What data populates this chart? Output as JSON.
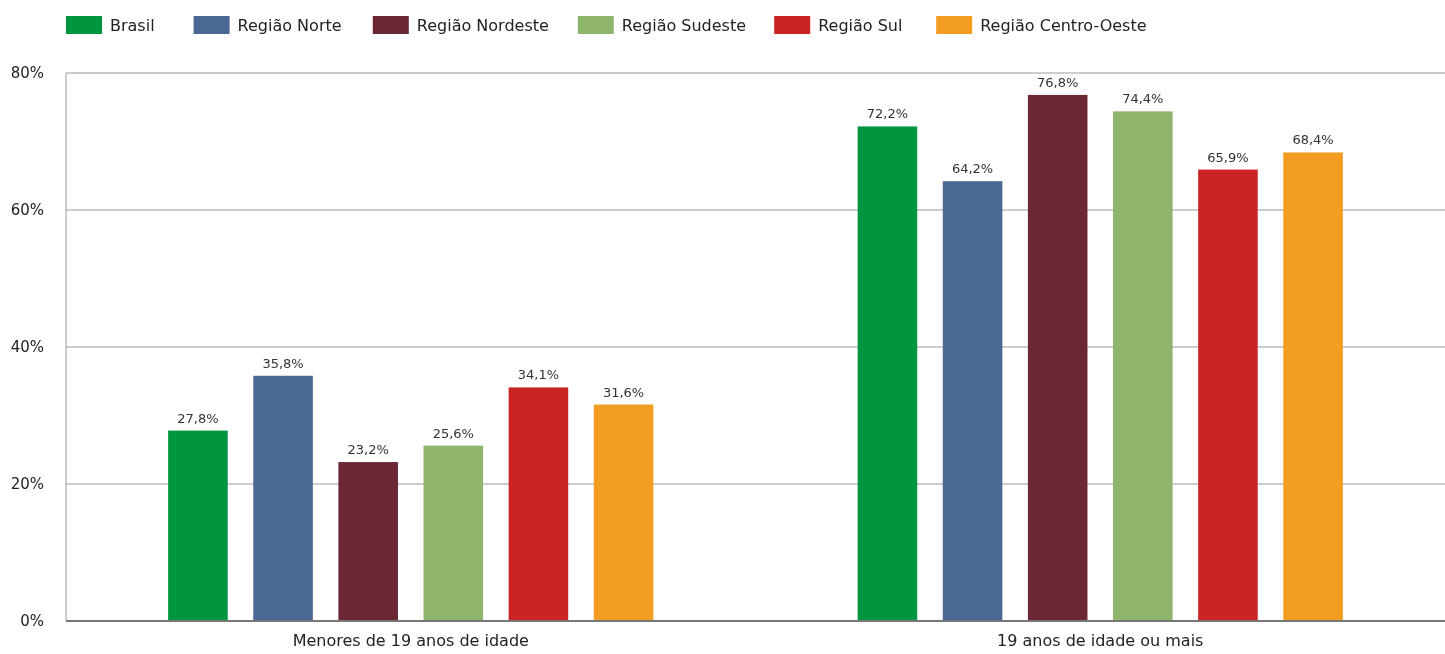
{
  "chart_data": {
    "type": "bar",
    "categories": [
      "Menores de 19 anos de idade",
      "19 anos de idade ou mais"
    ],
    "series": [
      {
        "name": "Brasil",
        "color": "#009640",
        "values": [
          27.8,
          72.2
        ],
        "value_labels": [
          "27,8%",
          "72,2%"
        ]
      },
      {
        "name": "Região Norte",
        "color": "#4a6893",
        "values": [
          35.8,
          64.2
        ],
        "value_labels": [
          "35,8%",
          "64,2%"
        ]
      },
      {
        "name": "Região Nordeste",
        "color": "#6b2734",
        "values": [
          23.2,
          76.8
        ],
        "value_labels": [
          "23,2%",
          "76,8%"
        ]
      },
      {
        "name": "Região Sudeste",
        "color": "#8db56b",
        "values": [
          25.6,
          74.4
        ],
        "value_labels": [
          "25,6%",
          "74,4%"
        ]
      },
      {
        "name": "Região Sul",
        "color": "#cc2424",
        "values": [
          34.1,
          65.9
        ],
        "value_labels": [
          "34,1%",
          "65,9%"
        ]
      },
      {
        "name": "Região Centro-Oeste",
        "color": "#f39c22",
        "values": [
          31.6,
          68.4
        ],
        "value_labels": [
          "31,6%",
          "68,4%"
        ]
      }
    ],
    "ylim": [
      0,
      80
    ],
    "yticks": [
      {
        "value": 0,
        "label": "0%"
      },
      {
        "value": 20,
        "label": "20%"
      },
      {
        "value": 40,
        "label": "40%"
      },
      {
        "value": 60,
        "label": "60%"
      },
      {
        "value": 80,
        "label": "80%"
      }
    ],
    "grid": "y",
    "legend": "top"
  }
}
